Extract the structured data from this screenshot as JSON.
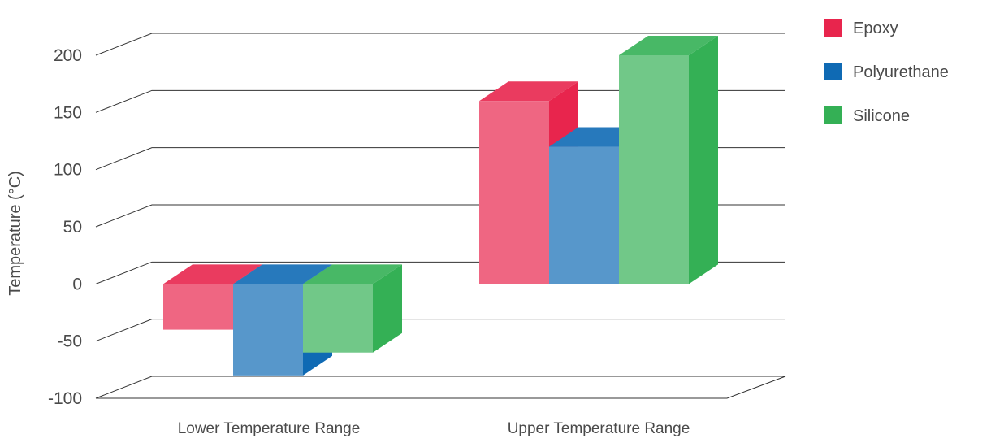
{
  "chart_data": {
    "type": "bar",
    "categories": [
      "Lower Temperature Range",
      "Upper Temperature Range"
    ],
    "series": [
      {
        "name": "Epoxy",
        "values": [
          -40,
          160
        ],
        "color": "#e8254d"
      },
      {
        "name": "Polyurethane",
        "values": [
          -80,
          120
        ],
        "color": "#0f6ab4"
      },
      {
        "name": "Silicone",
        "values": [
          -60,
          200
        ],
        "color": "#34b055"
      }
    ],
    "ylabel": "Temperature (°C)",
    "xlabel": "",
    "ylim": [
      -100,
      200
    ],
    "yticks": [
      -100,
      -50,
      0,
      50,
      100,
      150,
      200
    ],
    "grid": true,
    "legend": "top-right",
    "style": "3d"
  }
}
